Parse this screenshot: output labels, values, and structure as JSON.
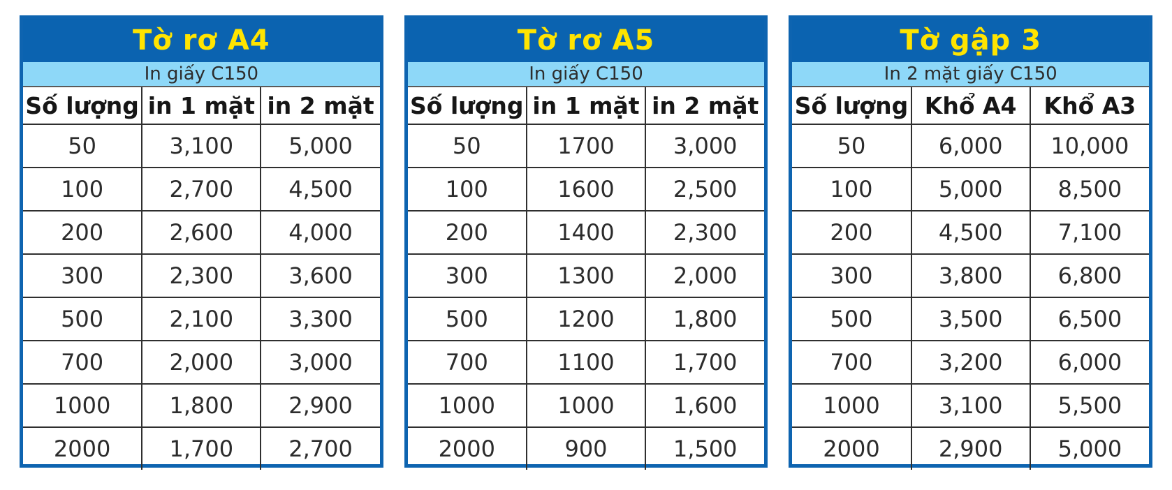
{
  "colors": {
    "header_blue": "#0b63b0",
    "title_yellow": "#ffe400",
    "subheader_light_blue": "#8ed8f8",
    "outer_border_blue": "#0e64b0",
    "cell_border_dark": "#2f2f2f"
  },
  "chart_data": [
    {
      "type": "table",
      "title": "Tờ rơ A4",
      "subtitle": "In giấy C150",
      "columns": [
        "Số lượng",
        "in 1 mặt",
        "in 2 mặt"
      ],
      "rows": [
        [
          "50",
          "3,100",
          "5,000"
        ],
        [
          "100",
          "2,700",
          "4,500"
        ],
        [
          "200",
          "2,600",
          "4,000"
        ],
        [
          "300",
          "2,300",
          "3,600"
        ],
        [
          "500",
          "2,100",
          "3,300"
        ],
        [
          "700",
          "2,000",
          "3,000"
        ],
        [
          "1000",
          "1,800",
          "2,900"
        ],
        [
          "2000",
          "1,700",
          "2,700"
        ]
      ]
    },
    {
      "type": "table",
      "title": "Tờ rơ A5",
      "subtitle": "In giấy C150",
      "columns": [
        "Số lượng",
        "in 1 mặt",
        "in 2 mặt"
      ],
      "rows": [
        [
          "50",
          "1700",
          "3,000"
        ],
        [
          "100",
          "1600",
          "2,500"
        ],
        [
          "200",
          "1400",
          "2,300"
        ],
        [
          "300",
          "1300",
          "2,000"
        ],
        [
          "500",
          "1200",
          "1,800"
        ],
        [
          "700",
          "1100",
          "1,700"
        ],
        [
          "1000",
          "1000",
          "1,600"
        ],
        [
          "2000",
          "900",
          "1,500"
        ]
      ]
    },
    {
      "type": "table",
      "title": "Tờ gập 3",
      "subtitle": "In 2 mặt giấy C150",
      "columns": [
        "Số lượng",
        "Khổ A4",
        "Khổ A3"
      ],
      "rows": [
        [
          "50",
          "6,000",
          "10,000"
        ],
        [
          "100",
          "5,000",
          "8,500"
        ],
        [
          "200",
          "4,500",
          "7,100"
        ],
        [
          "300",
          "3,800",
          "6,800"
        ],
        [
          "500",
          "3,500",
          "6,500"
        ],
        [
          "700",
          "3,200",
          "6,000"
        ],
        [
          "1000",
          "3,100",
          "5,500"
        ],
        [
          "2000",
          "2,900",
          "5,000"
        ]
      ]
    }
  ]
}
